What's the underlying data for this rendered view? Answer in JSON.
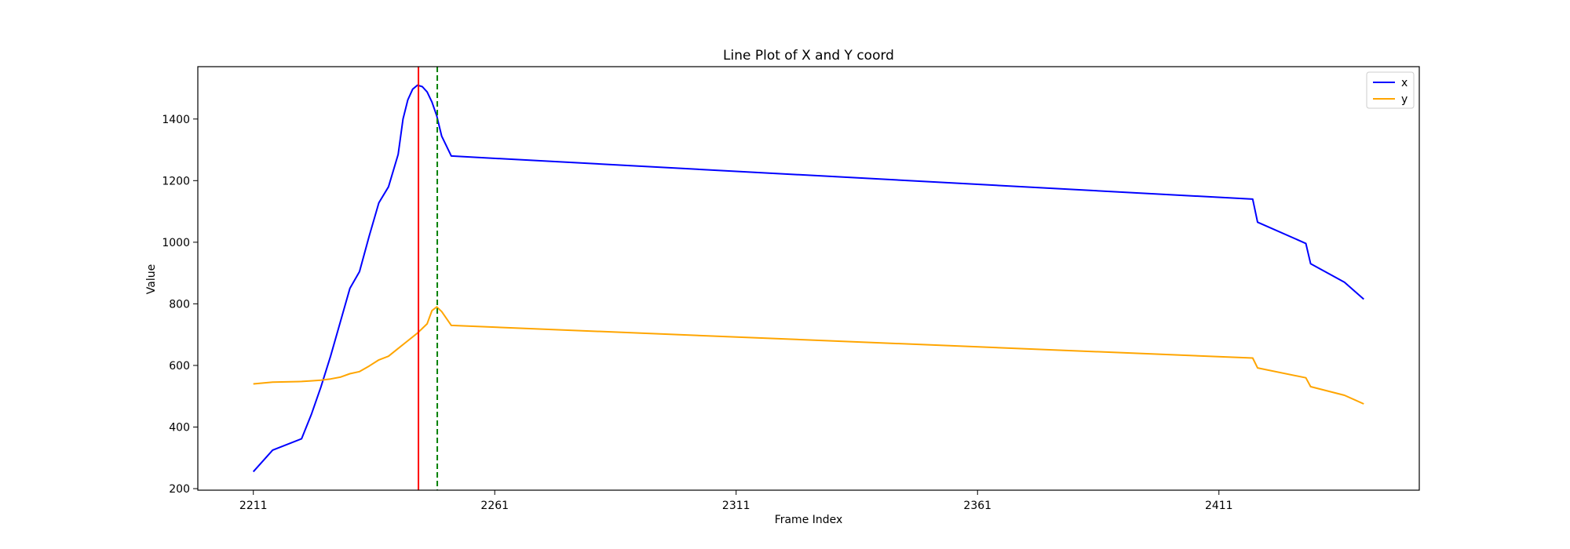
{
  "chart_data": {
    "type": "line",
    "title": "Line Plot of X and Y coord",
    "xlabel": "Frame Index",
    "ylabel": "Value",
    "xlim": [
      2199.5,
      2452.5
    ],
    "ylim": [
      195,
      1570
    ],
    "xticks": [
      2211,
      2261,
      2311,
      2361,
      2411
    ],
    "yticks": [
      200,
      400,
      600,
      800,
      1000,
      1200,
      1400
    ],
    "grid": false,
    "legend": "top-right",
    "vlines": [
      {
        "x": 2245.2,
        "color": "#ff0000",
        "style": "solid"
      },
      {
        "x": 2249.1,
        "color": "#008000",
        "style": "dashed"
      }
    ],
    "series": [
      {
        "name": "x",
        "color": "#0000ff",
        "points": [
          [
            2211,
            255
          ],
          [
            2215,
            325
          ],
          [
            2221,
            362
          ],
          [
            2223,
            440
          ],
          [
            2225,
            530
          ],
          [
            2227,
            630
          ],
          [
            2229,
            740
          ],
          [
            2231,
            850
          ],
          [
            2233,
            905
          ],
          [
            2235,
            1020
          ],
          [
            2237,
            1128
          ],
          [
            2239,
            1180
          ],
          [
            2241,
            1285
          ],
          [
            2242,
            1400
          ],
          [
            2243,
            1462
          ],
          [
            2244,
            1497
          ],
          [
            2245,
            1510
          ],
          [
            2246,
            1505
          ],
          [
            2247,
            1488
          ],
          [
            2248,
            1455
          ],
          [
            2249,
            1410
          ],
          [
            2250,
            1345
          ],
          [
            2252,
            1280
          ],
          [
            2418,
            1140
          ],
          [
            2419,
            1065
          ],
          [
            2429,
            996
          ],
          [
            2430,
            930
          ],
          [
            2437,
            870
          ],
          [
            2441,
            815
          ]
        ]
      },
      {
        "name": "y",
        "color": "#ffa500",
        "points": [
          [
            2211,
            540
          ],
          [
            2215,
            546
          ],
          [
            2221,
            548
          ],
          [
            2223,
            550
          ],
          [
            2225,
            552
          ],
          [
            2227,
            556
          ],
          [
            2229,
            562
          ],
          [
            2231,
            573
          ],
          [
            2233,
            580
          ],
          [
            2235,
            598
          ],
          [
            2237,
            618
          ],
          [
            2239,
            630
          ],
          [
            2241,
            655
          ],
          [
            2243,
            680
          ],
          [
            2245,
            705
          ],
          [
            2247,
            735
          ],
          [
            2248,
            778
          ],
          [
            2249,
            790
          ],
          [
            2250,
            775
          ],
          [
            2252,
            730
          ],
          [
            2418,
            624
          ],
          [
            2419,
            592
          ],
          [
            2429,
            560
          ],
          [
            2430,
            531
          ],
          [
            2437,
            503
          ],
          [
            2441,
            475
          ]
        ]
      }
    ]
  }
}
